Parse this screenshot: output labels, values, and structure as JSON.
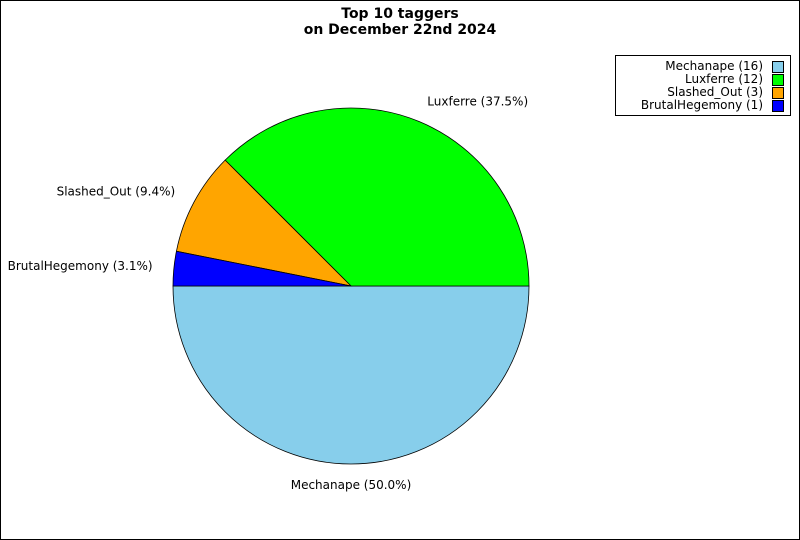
{
  "chart_data": {
    "type": "pie",
    "title_lines": [
      "Top 10 taggers",
      "on December 22nd 2024"
    ],
    "slices": [
      {
        "label": "Mechanape",
        "value": 16,
        "percent_label": "Mechanape (50.0%)",
        "legend_label": "Mechanape (16)",
        "color": "#87CEEB"
      },
      {
        "label": "Luxferre",
        "value": 12,
        "percent_label": "Luxferre (37.5%)",
        "legend_label": "Luxferre (12)",
        "color": "#00FF00"
      },
      {
        "label": "Slashed_Out",
        "value": 3,
        "percent_label": "Slashed_Out (9.4%)",
        "legend_label": "Slashed_Out (3)",
        "color": "#FFA500"
      },
      {
        "label": "BrutalHegemony",
        "value": 1,
        "percent_label": "BrutalHegemony (3.1%)",
        "legend_label": "BrutalHegemony (1)",
        "color": "#0000FF"
      }
    ],
    "legend_position": "top-right"
  }
}
